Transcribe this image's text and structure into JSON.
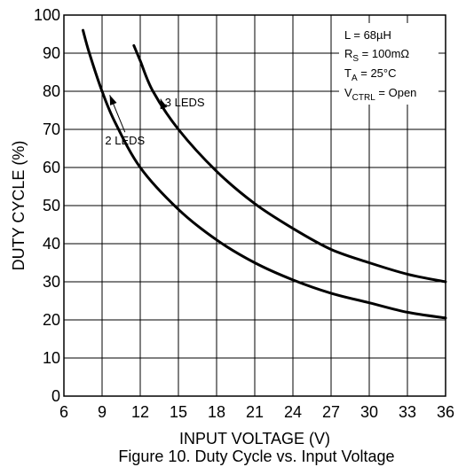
{
  "chart_data": {
    "type": "line",
    "xlabel": "INPUT VOLTAGE (V)",
    "ylabel": "DUTY CYCLE (%)",
    "caption": "Figure 10. Duty Cycle vs. Input Voltage",
    "xlim": [
      6,
      36
    ],
    "ylim": [
      0,
      100
    ],
    "xticks": [
      6,
      9,
      12,
      15,
      18,
      21,
      24,
      27,
      30,
      33,
      36
    ],
    "yticks": [
      0,
      10,
      20,
      30,
      40,
      50,
      60,
      70,
      80,
      90,
      100
    ],
    "grid": true,
    "series": [
      {
        "name": "2 LEDS",
        "x": [
          7.5,
          8,
          9,
          10,
          12,
          15,
          18,
          21,
          24,
          27,
          30,
          33,
          36
        ],
        "y": [
          96,
          90,
          80,
          72,
          60,
          49,
          41,
          35,
          30.5,
          27,
          24.5,
          22,
          20.5
        ]
      },
      {
        "name": "3 LEDS",
        "x": [
          11.5,
          12,
          13,
          15,
          18,
          21,
          24,
          27,
          30,
          33,
          36
        ],
        "y": [
          92,
          88,
          80,
          70,
          59,
          50.5,
          44,
          38.5,
          35,
          32,
          30
        ]
      }
    ],
    "conditions": [
      {
        "main": "L = 68µH",
        "sub": "",
        "rest": ""
      },
      {
        "main": "R",
        "sub": "S",
        "rest": " = 100mΩ"
      },
      {
        "main": "T",
        "sub": "A",
        "rest": " = 25°C"
      },
      {
        "main": "V",
        "sub": "CTRL",
        "rest": " = Open"
      }
    ],
    "series_labels": [
      {
        "series": "2 LEDS",
        "text": "2 LEDS",
        "text_at": [
          10.8,
          66
        ],
        "arrow_to": [
          9.6,
          79
        ]
      },
      {
        "series": "3 LEDS",
        "text": "3 LEDS",
        "text_at": [
          15.5,
          76
        ],
        "arrow_to": [
          13.6,
          78
        ]
      }
    ]
  }
}
